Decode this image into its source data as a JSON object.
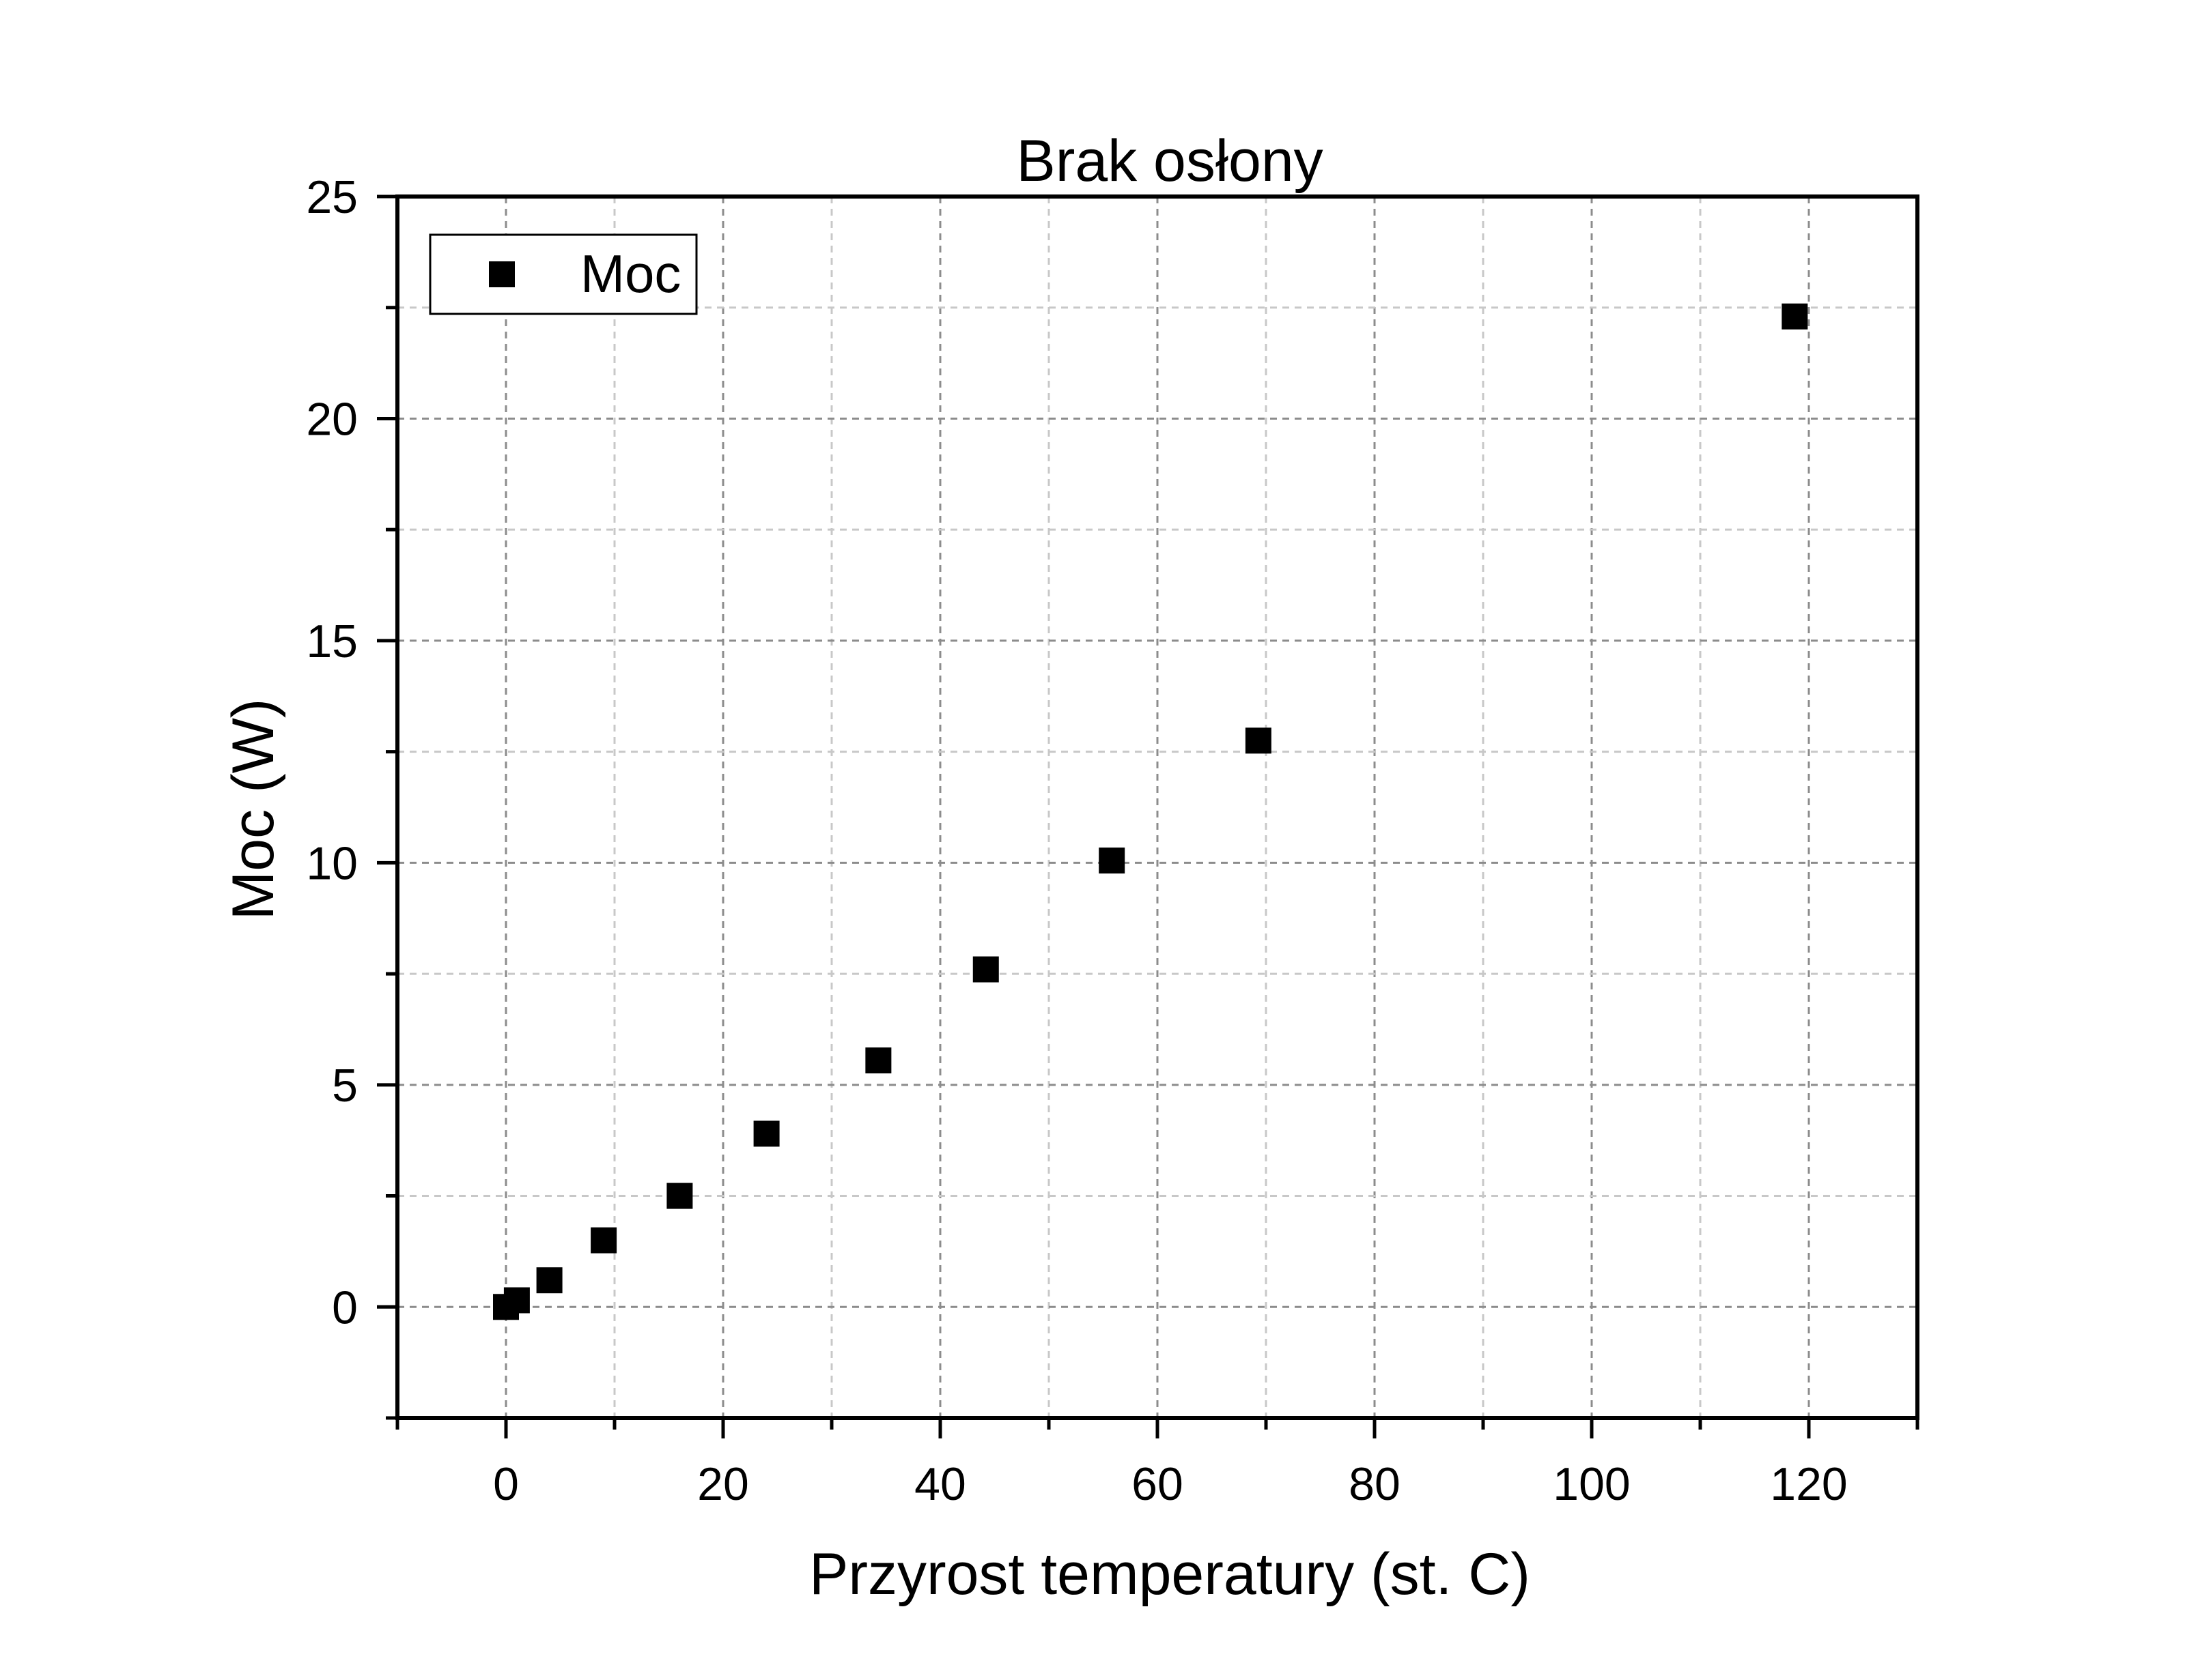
{
  "chart_data": {
    "type": "scatter",
    "title": "Brak osłony",
    "xlabel": "Przyrost temperatury (st. C)",
    "ylabel": "Moc (W)",
    "xlim": [
      -10,
      130
    ],
    "ylim": [
      -2.5,
      25
    ],
    "x_ticks": [
      0,
      20,
      40,
      60,
      80,
      100,
      120
    ],
    "y_ticks": [
      0,
      5,
      10,
      15,
      20,
      25
    ],
    "grid": true,
    "legend_position": "top-left",
    "series": [
      {
        "name": "Moc",
        "color": "#000000",
        "marker": "square",
        "points": [
          {
            "x": 0,
            "y": 0
          },
          {
            "x": 1,
            "y": 0.15
          },
          {
            "x": 4,
            "y": 0.6
          },
          {
            "x": 9,
            "y": 1.5
          },
          {
            "x": 16,
            "y": 2.5
          },
          {
            "x": 24,
            "y": 3.9
          },
          {
            "x": 34.3,
            "y": 5.55
          },
          {
            "x": 44.2,
            "y": 7.6
          },
          {
            "x": 55.8,
            "y": 10.05
          },
          {
            "x": 69.3,
            "y": 12.75
          },
          {
            "x": 118.7,
            "y": 22.3
          }
        ]
      }
    ]
  }
}
